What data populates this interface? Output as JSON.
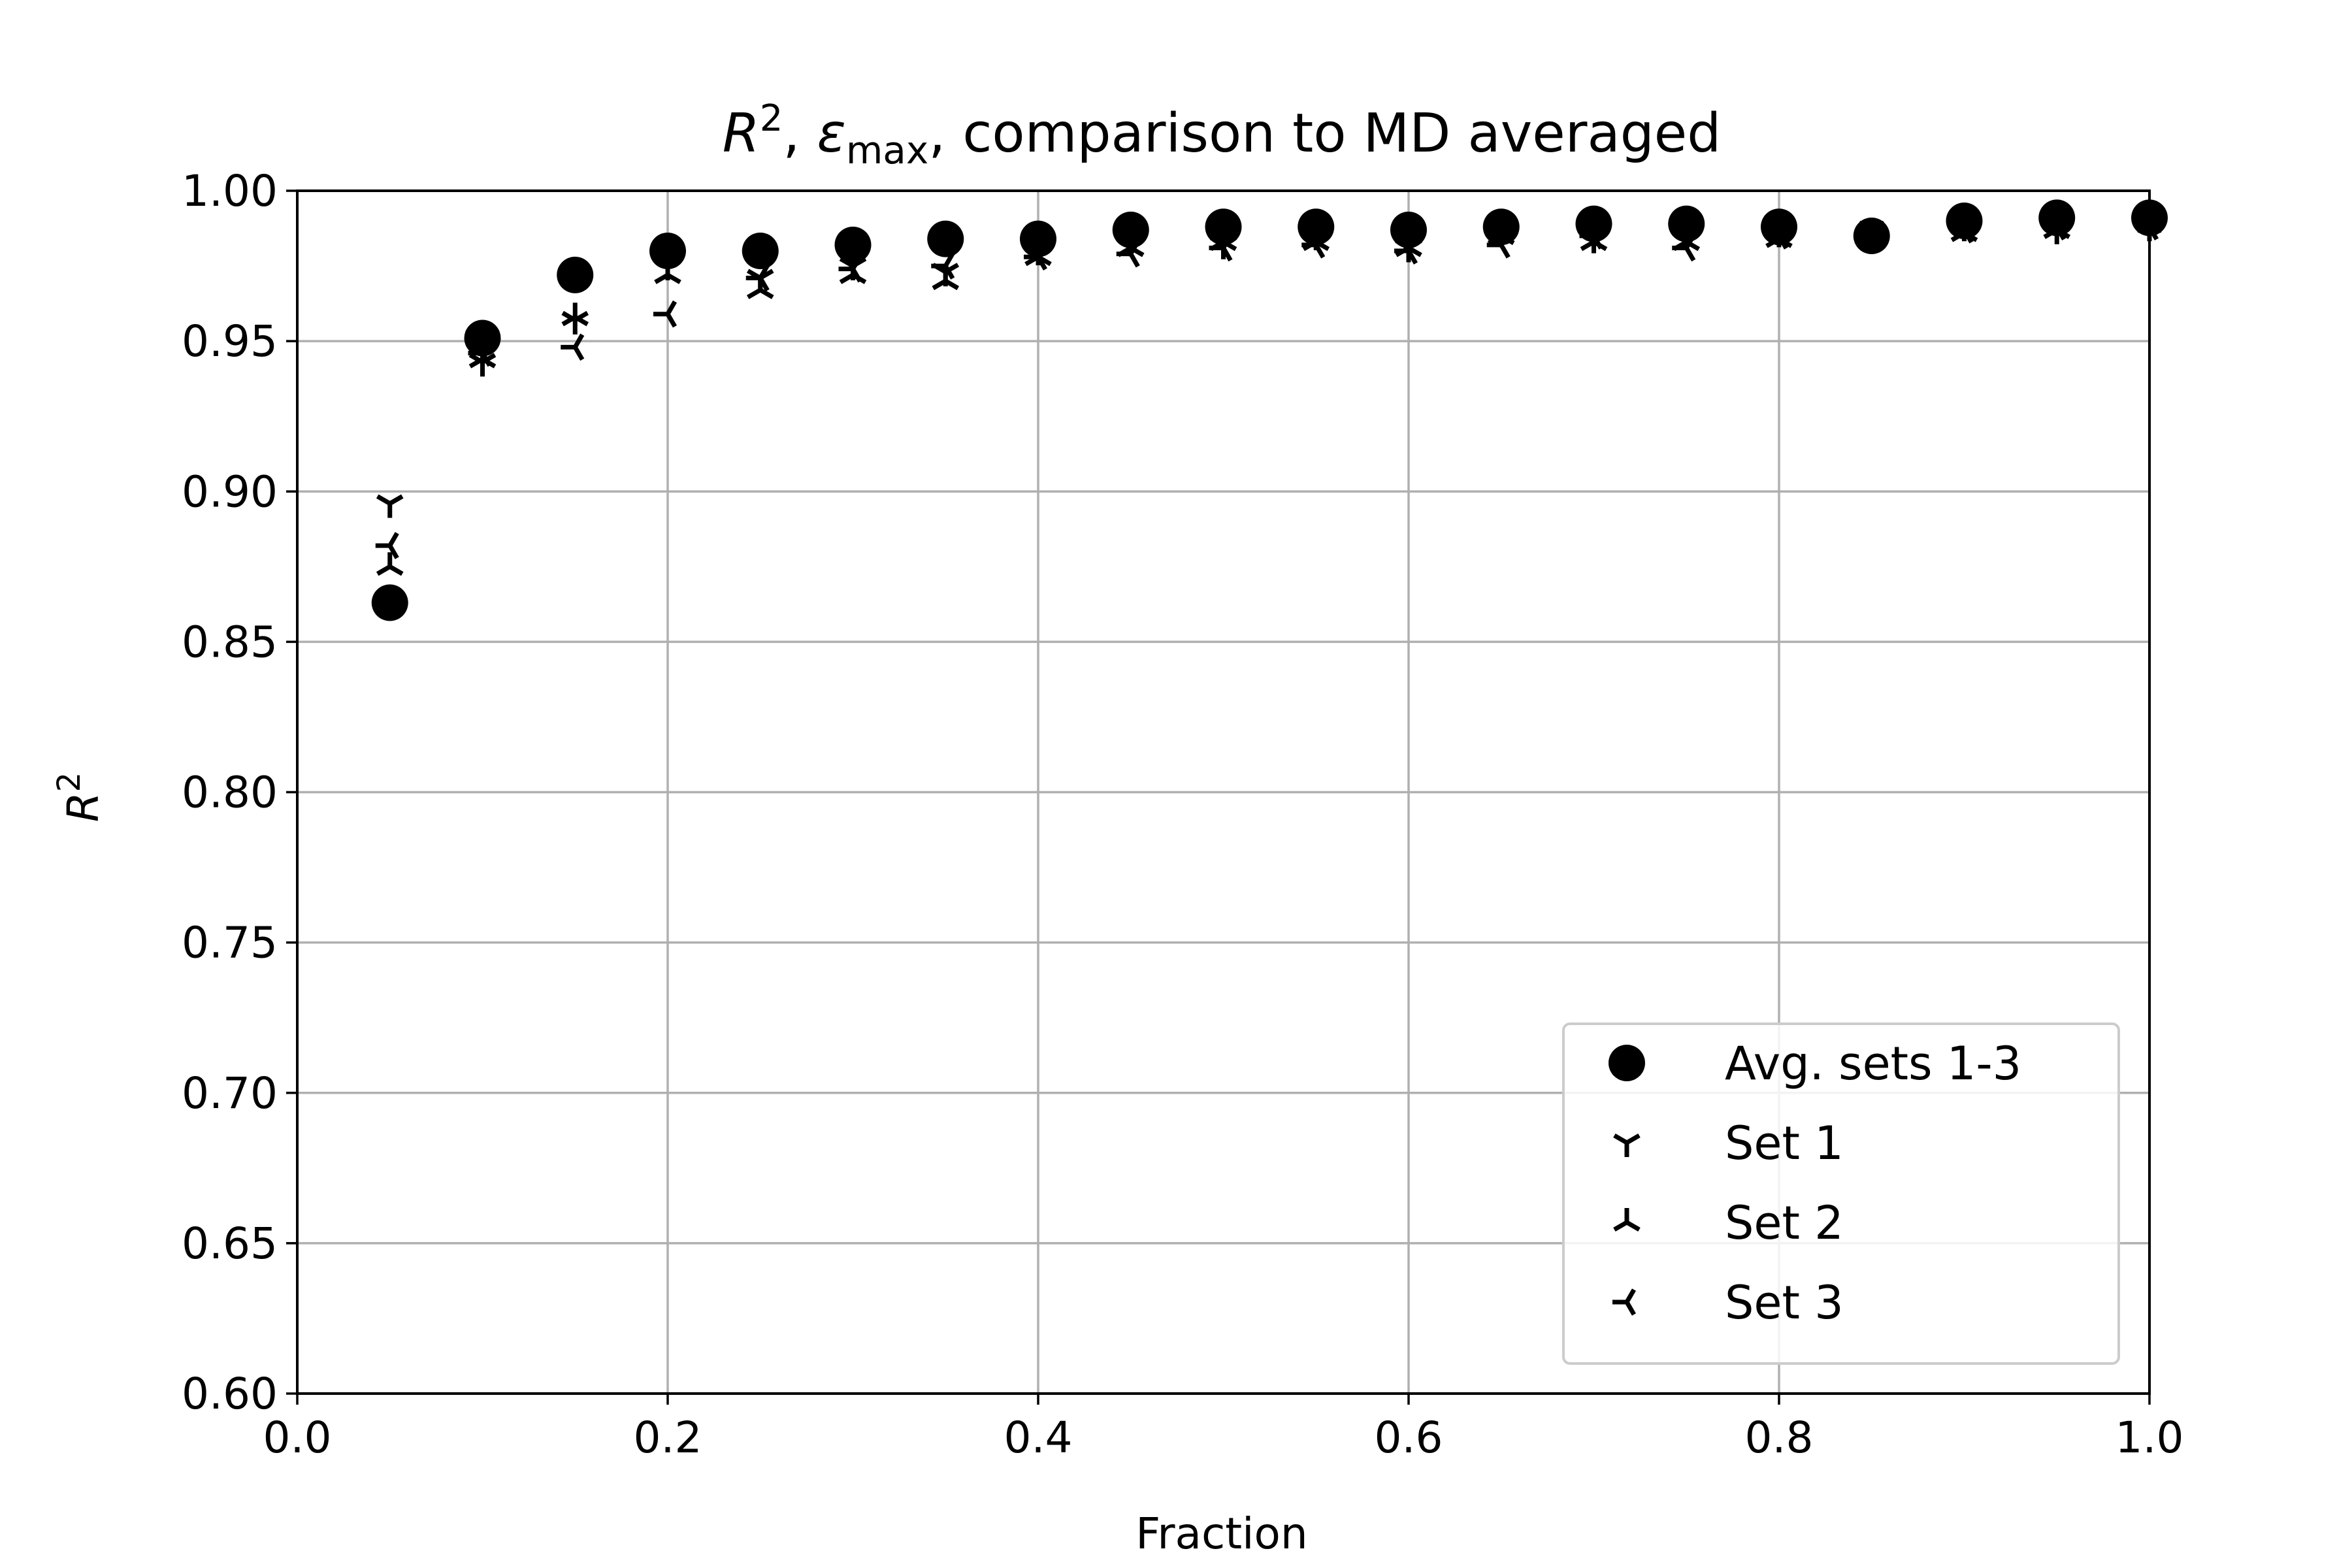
{
  "chart_data": {
    "type": "scatter",
    "title": {
      "r_base": "R",
      "r_sup": "2",
      "sep1": ", ",
      "eps_base": "ε",
      "eps_sub": "max",
      "rest": ", comparison to MD averaged"
    },
    "xlabel": "Fraction",
    "ylabel": {
      "base": "R",
      "sup": "2"
    },
    "xlim": [
      0.0,
      1.0
    ],
    "ylim": [
      0.6,
      1.0
    ],
    "xticks": [
      "0.0",
      "0.2",
      "0.4",
      "0.6",
      "0.8",
      "1.0"
    ],
    "yticks": [
      "0.60",
      "0.65",
      "0.70",
      "0.75",
      "0.80",
      "0.85",
      "0.90",
      "0.95",
      "1.00"
    ],
    "grid": true,
    "legend_position": "lower right",
    "x": [
      0.05,
      0.1,
      0.15,
      0.2,
      0.25,
      0.3,
      0.35,
      0.4,
      0.45,
      0.5,
      0.55,
      0.6,
      0.65,
      0.7,
      0.75,
      0.8,
      0.85,
      0.9,
      0.95,
      1.0
    ],
    "series": [
      {
        "name": "Avg. sets 1-3",
        "marker": "circle",
        "color": "#000000",
        "values": [
          0.863,
          0.951,
          0.972,
          0.98,
          0.98,
          0.982,
          0.984,
          0.984,
          0.987,
          0.988,
          0.988,
          0.987,
          0.988,
          0.989,
          0.989,
          0.988,
          0.985,
          0.99,
          0.991,
          0.991
        ]
      },
      {
        "name": "Set 1",
        "marker": "tri_down",
        "color": "#000000",
        "values": [
          0.896,
          0.943,
          0.957,
          0.975,
          0.971,
          0.975,
          0.973,
          0.98,
          0.983,
          0.982,
          0.985,
          0.981,
          0.986,
          0.984,
          0.985,
          0.986,
          0.987,
          0.988,
          0.987,
          0.988
        ]
      },
      {
        "name": "Set 2",
        "marker": "tri_up",
        "color": "#000000",
        "values": [
          0.875,
          0.944,
          0.958,
          0.972,
          0.967,
          0.972,
          0.97,
          0.978,
          0.981,
          0.983,
          0.983,
          0.981,
          0.985,
          0.983,
          0.983,
          0.984,
          0.984,
          0.986,
          0.987,
          0.989
        ]
      },
      {
        "name": "Set 3",
        "marker": "tri_left",
        "color": "#000000",
        "values": [
          0.882,
          0.946,
          0.948,
          0.959,
          0.971,
          0.974,
          0.975,
          0.978,
          0.979,
          0.981,
          0.982,
          0.98,
          0.982,
          0.985,
          0.981,
          0.985,
          0.986,
          0.987,
          0.988,
          0.988
        ]
      }
    ]
  }
}
